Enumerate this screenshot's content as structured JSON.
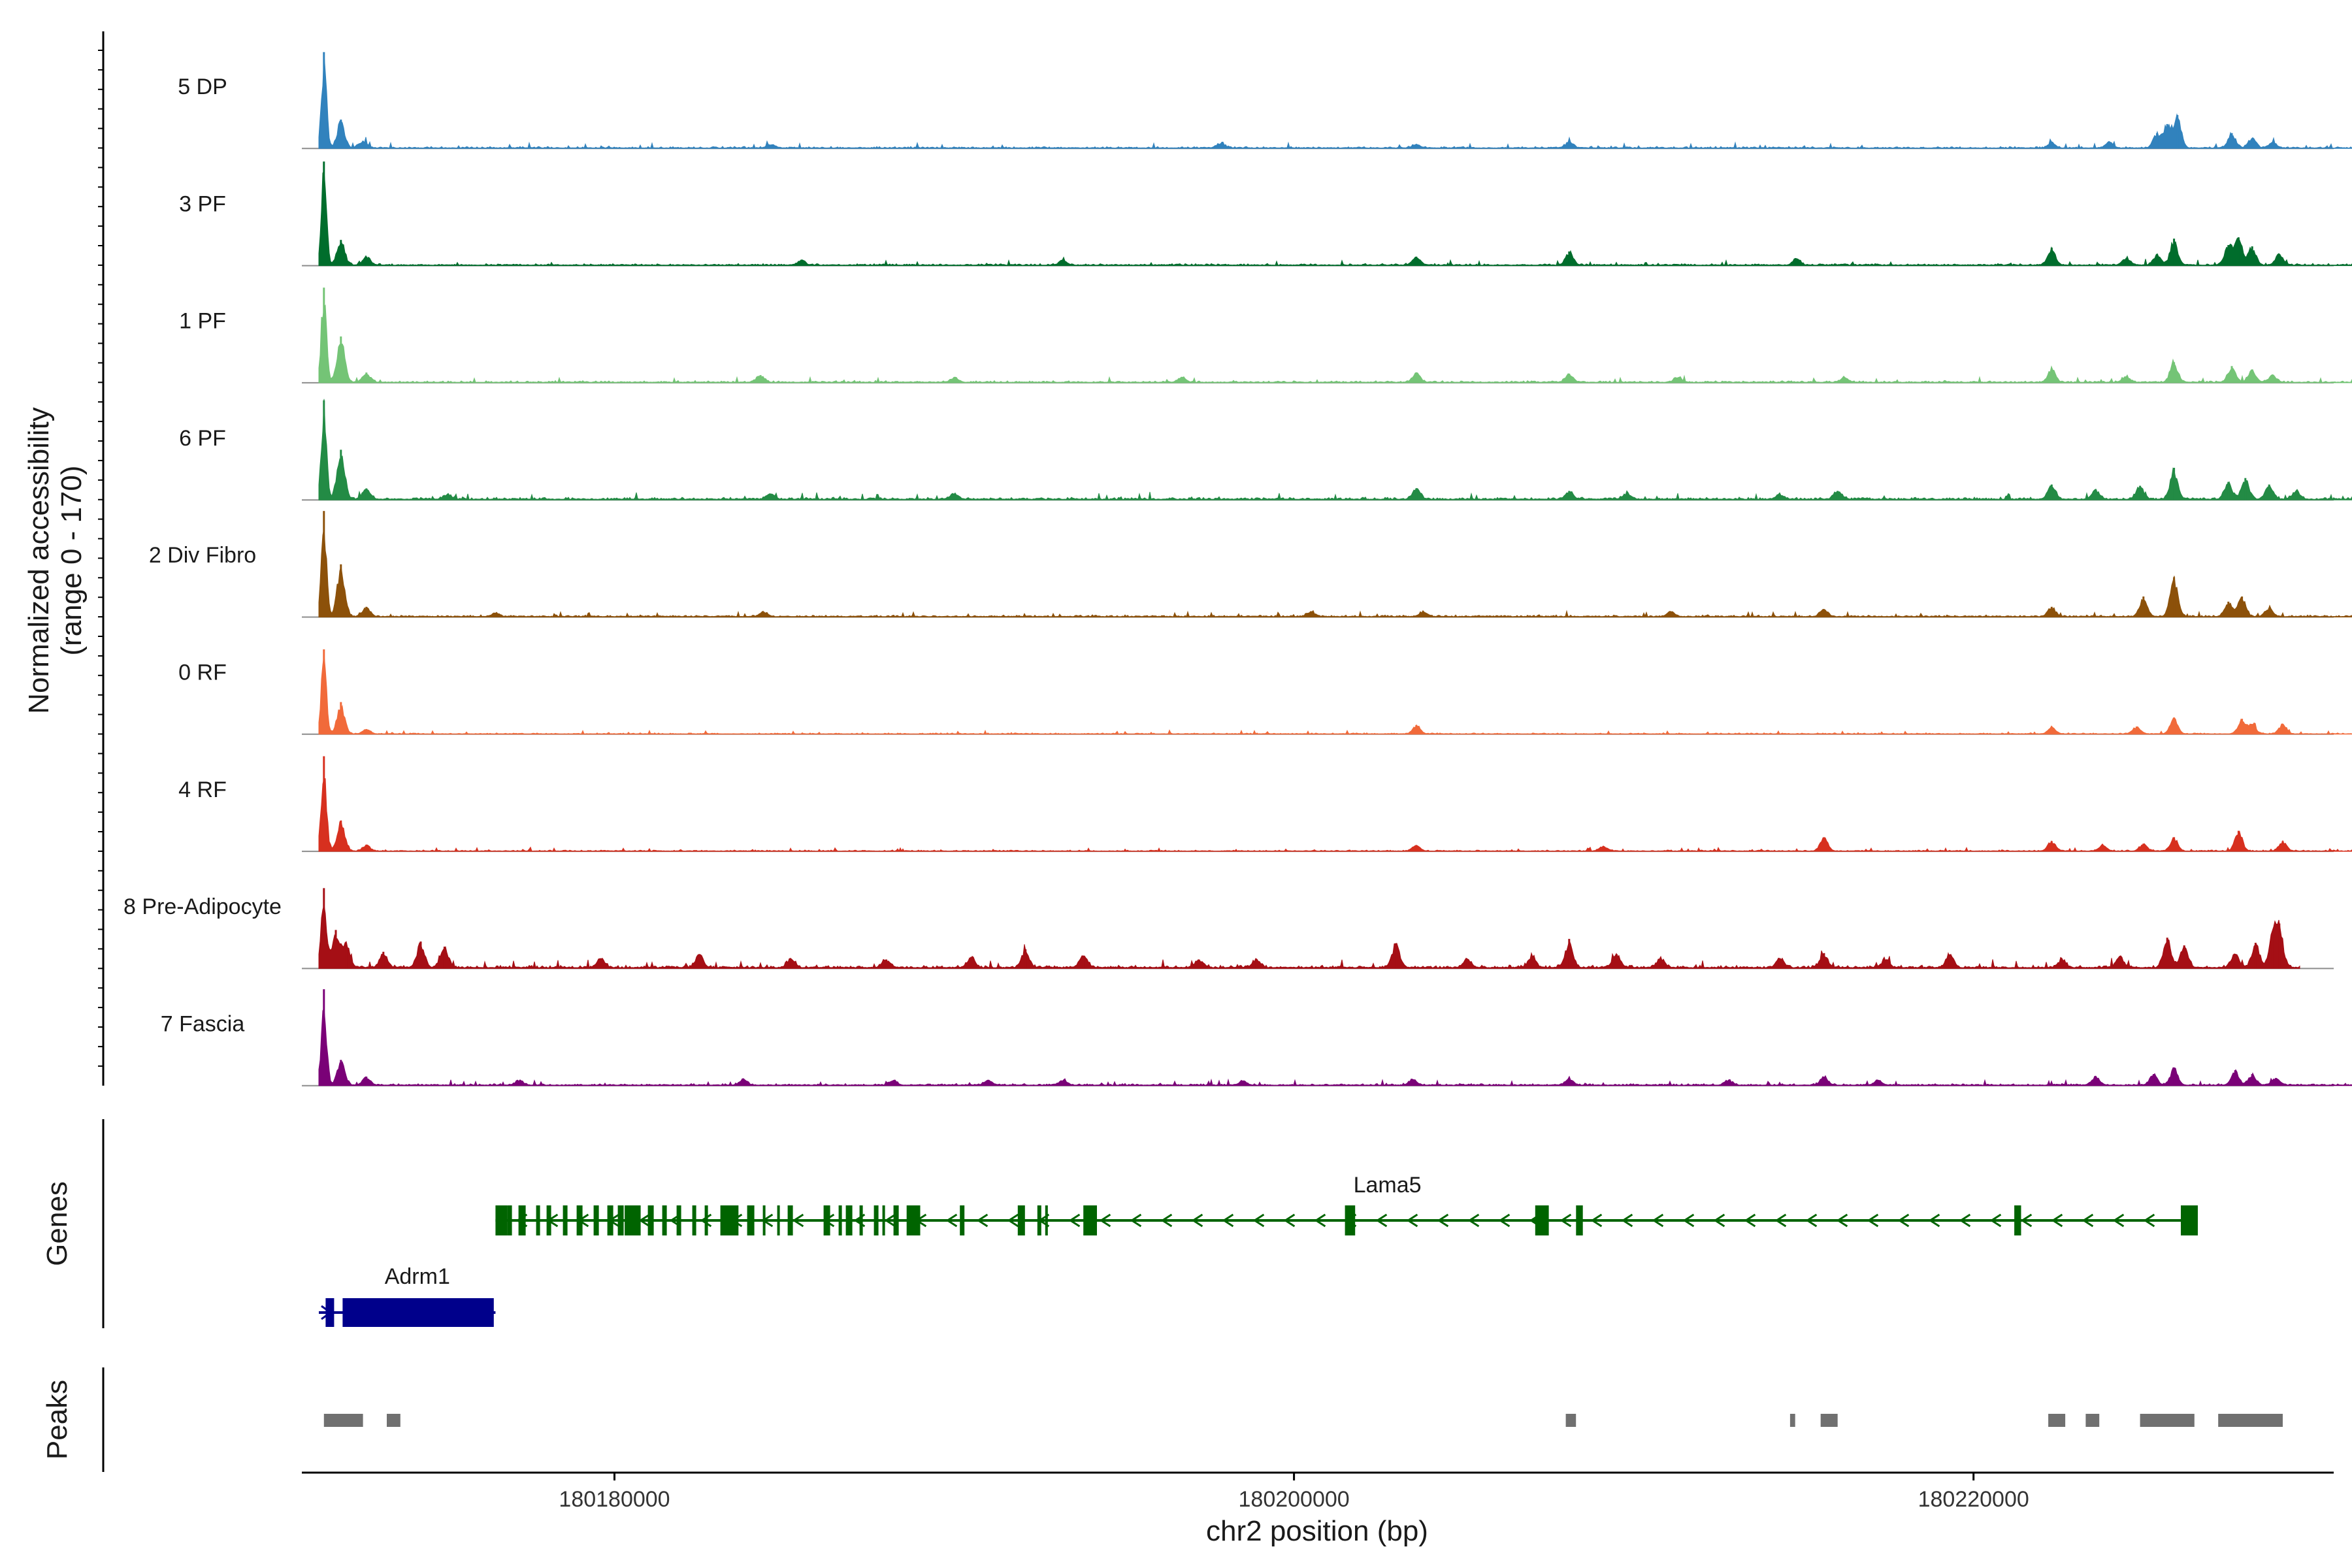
{
  "chart_data": {
    "type": "area",
    "title": "",
    "region": {
      "chromosome": "chr2",
      "start": 180170800,
      "end": 180230600
    },
    "ylabel_line1": "Normalized accessibility",
    "ylabel_line2": "(range 0 - 170)",
    "ylim": [
      0,
      170
    ],
    "xlabel": "chr2 position (bp)",
    "xticks": [
      180180000,
      180200000,
      180220000
    ],
    "xtick_labels": [
      "180180000",
      "180200000",
      "180220000"
    ],
    "series": [
      {
        "name": "5 DP",
        "color": "#3182BD",
        "peaks": [
          [
            180171450,
            150
          ],
          [
            180171950,
            45
          ],
          [
            180172600,
            12
          ],
          [
            180184600,
            6
          ],
          [
            180197850,
            8
          ],
          [
            180203600,
            6
          ],
          [
            180208100,
            10
          ],
          [
            180222300,
            8
          ],
          [
            180224000,
            10
          ],
          [
            180225400,
            24
          ],
          [
            180225700,
            38
          ],
          [
            180226000,
            52
          ],
          [
            180227600,
            24
          ],
          [
            180228200,
            16
          ],
          [
            180228800,
            10
          ]
        ],
        "baseline": 3,
        "extent": [
          180171300,
          180234000
        ]
      },
      {
        "name": "3 PF",
        "color": "#006D2C",
        "peaks": [
          [
            180171450,
            162
          ],
          [
            180171950,
            40
          ],
          [
            180172700,
            14
          ],
          [
            180185500,
            8
          ],
          [
            180193200,
            9
          ],
          [
            180203600,
            14
          ],
          [
            180208100,
            22
          ],
          [
            180214800,
            10
          ],
          [
            180222300,
            28
          ],
          [
            180224500,
            12
          ],
          [
            180225400,
            18
          ],
          [
            180225900,
            42
          ],
          [
            180227500,
            32
          ],
          [
            180227800,
            44
          ],
          [
            180228200,
            30
          ],
          [
            180229000,
            18
          ]
        ],
        "baseline": 3,
        "extent": [
          180171300,
          180232500
        ]
      },
      {
        "name": "1 PF",
        "color": "#74C476",
        "peaks": [
          [
            180171450,
            148
          ],
          [
            180171950,
            72
          ],
          [
            180172700,
            16
          ],
          [
            180184300,
            12
          ],
          [
            180190000,
            8
          ],
          [
            180196700,
            9
          ],
          [
            180203600,
            16
          ],
          [
            180208100,
            14
          ],
          [
            180211300,
            8
          ],
          [
            180216200,
            8
          ],
          [
            180222300,
            22
          ],
          [
            180224500,
            10
          ],
          [
            180225900,
            32
          ],
          [
            180227600,
            26
          ],
          [
            180228200,
            20
          ],
          [
            180228800,
            12
          ]
        ],
        "baseline": 3,
        "extent": [
          180171300,
          180234000
        ]
      },
      {
        "name": "6 PF",
        "color": "#238B45",
        "peaks": [
          [
            180171450,
            155
          ],
          [
            180171950,
            78
          ],
          [
            180172700,
            18
          ],
          [
            180175100,
            9
          ],
          [
            180184600,
            9
          ],
          [
            180190000,
            10
          ],
          [
            180203600,
            18
          ],
          [
            180208100,
            14
          ],
          [
            180209800,
            10
          ],
          [
            180214300,
            8
          ],
          [
            180216000,
            14
          ],
          [
            180222300,
            24
          ],
          [
            180223600,
            16
          ],
          [
            180224900,
            22
          ],
          [
            180225900,
            50
          ],
          [
            180227500,
            28
          ],
          [
            180228000,
            34
          ],
          [
            180228700,
            24
          ],
          [
            180229500,
            14
          ],
          [
            180231400,
            8
          ]
        ],
        "baseline": 4,
        "extent": [
          180171300,
          180232900
        ]
      },
      {
        "name": "2 Div Fibro",
        "color": "#8C510A",
        "peaks": [
          [
            180171450,
            165
          ],
          [
            180171950,
            82
          ],
          [
            180172700,
            16
          ],
          [
            180176500,
            6
          ],
          [
            180184400,
            8
          ],
          [
            180200500,
            9
          ],
          [
            180203800,
            8
          ],
          [
            180211100,
            8
          ],
          [
            180215600,
            12
          ],
          [
            180222300,
            16
          ],
          [
            180225000,
            32
          ],
          [
            180225900,
            62
          ],
          [
            180227500,
            24
          ],
          [
            180227900,
            32
          ],
          [
            180228700,
            14
          ]
        ],
        "baseline": 3,
        "extent": [
          180171300,
          180234000
        ]
      },
      {
        "name": "0 RF",
        "color": "#F16A3A",
        "peaks": [
          [
            180171450,
            132
          ],
          [
            180171950,
            50
          ],
          [
            180172700,
            8
          ],
          [
            180203600,
            14
          ],
          [
            180222300,
            10
          ],
          [
            180224800,
            12
          ],
          [
            180225900,
            26
          ],
          [
            180227900,
            24
          ],
          [
            180228200,
            16
          ],
          [
            180229100,
            16
          ]
        ],
        "baseline": 2,
        "extent": [
          180171300,
          180234000
        ]
      },
      {
        "name": "4 RF",
        "color": "#D7301F",
        "peaks": [
          [
            180171450,
            148
          ],
          [
            180171950,
            48
          ],
          [
            180172700,
            10
          ],
          [
            180203600,
            9
          ],
          [
            180209100,
            8
          ],
          [
            180215600,
            22
          ],
          [
            180222300,
            16
          ],
          [
            180223800,
            10
          ],
          [
            180225000,
            12
          ],
          [
            180225900,
            22
          ],
          [
            180227800,
            32
          ],
          [
            180229100,
            16
          ]
        ],
        "baseline": 2,
        "extent": [
          180171300,
          180234000
        ]
      },
      {
        "name": "8 Pre-Adipocyte",
        "color": "#A50F15",
        "peaks": [
          [
            180171450,
            125
          ],
          [
            180171800,
            60
          ],
          [
            180172100,
            40
          ],
          [
            180173200,
            26
          ],
          [
            180174300,
            42
          ],
          [
            180175000,
            34
          ],
          [
            180179600,
            16
          ],
          [
            180182500,
            22
          ],
          [
            180185200,
            14
          ],
          [
            180188000,
            14
          ],
          [
            180190500,
            18
          ],
          [
            180192100,
            30
          ],
          [
            180193800,
            20
          ],
          [
            180197200,
            14
          ],
          [
            180198900,
            14
          ],
          [
            180203000,
            38
          ],
          [
            180205100,
            14
          ],
          [
            180207000,
            20
          ],
          [
            180208100,
            46
          ],
          [
            180209500,
            22
          ],
          [
            180210800,
            14
          ],
          [
            180214300,
            16
          ],
          [
            180215600,
            24
          ],
          [
            180217400,
            14
          ],
          [
            180219300,
            22
          ],
          [
            180222600,
            14
          ],
          [
            180224300,
            18
          ],
          [
            180225700,
            48
          ],
          [
            180226200,
            36
          ],
          [
            180227700,
            22
          ],
          [
            180228300,
            40
          ],
          [
            180228800,
            52
          ],
          [
            180229000,
            70
          ]
        ],
        "baseline": 5,
        "extent": [
          180171300,
          180229600
        ]
      },
      {
        "name": "7 Fascia",
        "color": "#7A0177",
        "peaks": [
          [
            180171450,
            150
          ],
          [
            180171950,
            40
          ],
          [
            180172700,
            14
          ],
          [
            180177200,
            8
          ],
          [
            180183800,
            9
          ],
          [
            180188200,
            8
          ],
          [
            180191000,
            8
          ],
          [
            180193200,
            8
          ],
          [
            180198500,
            7
          ],
          [
            180203500,
            9
          ],
          [
            180208100,
            12
          ],
          [
            180212800,
            8
          ],
          [
            180215600,
            14
          ],
          [
            180217200,
            8
          ],
          [
            180223600,
            14
          ],
          [
            180225300,
            18
          ],
          [
            180225900,
            28
          ],
          [
            180227700,
            24
          ],
          [
            180228200,
            18
          ],
          [
            180228900,
            12
          ]
        ],
        "baseline": 3,
        "extent": [
          180171300,
          180234000
        ]
      }
    ],
    "genes": [
      {
        "name": "Lama5",
        "strand": "-",
        "color": "#006400",
        "start": 180176500,
        "end": 180226600,
        "exons": [
          [
            180176500,
            180176850
          ],
          [
            180180300,
            180180750
          ],
          [
            180183200,
            180183650
          ],
          [
            180188600,
            180189000
          ],
          [
            180193800,
            180194200
          ],
          [
            180201500,
            180201800
          ],
          [
            180207100,
            180207500
          ],
          [
            180208300,
            180208500
          ],
          [
            180221200,
            180221400
          ],
          [
            180226100,
            180226600
          ]
        ],
        "dense_exon_region": [
          180176850,
          180193500
        ]
      },
      {
        "name": "Adrm1",
        "strand": "+",
        "color": "#00008B",
        "start": 180171300,
        "end": 180176500,
        "exons": [
          [
            180171500,
            180171750
          ],
          [
            180172000,
            180176450
          ]
        ]
      }
    ],
    "peaks_track": [
      [
        180171450,
        180172600
      ],
      [
        180173300,
        180173700
      ],
      [
        180208000,
        180208300
      ],
      [
        180214600,
        180214750
      ],
      [
        180215500,
        180216000
      ],
      [
        180222200,
        180222700
      ],
      [
        180223300,
        180223700
      ],
      [
        180224900,
        180226500
      ],
      [
        180227200,
        180229100
      ]
    ],
    "panel_labels": {
      "genes": "Genes",
      "peaks": "Peaks"
    }
  }
}
